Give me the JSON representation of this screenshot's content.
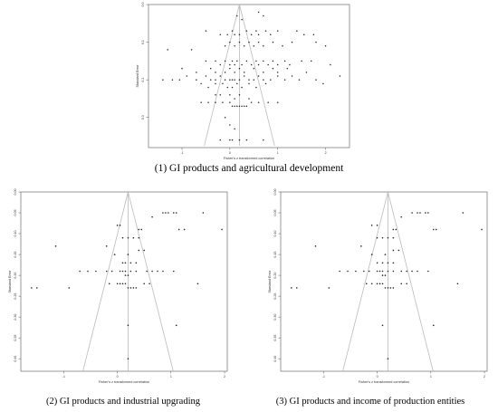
{
  "colors": {
    "frame": "#555555",
    "points": "#222222",
    "funnel": "#bbbbbb"
  },
  "captions": {
    "p1": "(1) GI products and agricultural development",
    "p2": "(2) GI products and industrial upgrading",
    "p3": "(3) GI products and income of production entities"
  },
  "chart_data": [
    {
      "type": "scatter",
      "title": "",
      "xlabel": "Fisher's z transformed correlation",
      "ylabel": "Standard Error",
      "xlim": [
        -1.7,
        2.5
      ],
      "ylim": [
        0.38,
        0.0
      ],
      "x_ticks": [
        -1,
        0,
        1,
        2
      ],
      "y_ticks": [
        0.0,
        0.1,
        0.2,
        0.3
      ],
      "y_tick_labels": [
        "0.0",
        "0.1",
        "0.2",
        "0.3"
      ],
      "funnel": {
        "center": 0.2,
        "apex": 0.0,
        "base_se": 0.375
      },
      "points": [
        [
          0.15,
          0.03
        ],
        [
          0.25,
          0.04
        ],
        [
          0.6,
          0.02
        ],
        [
          0.7,
          0.03
        ],
        [
          -0.2,
          0.08
        ],
        [
          -0.05,
          0.08
        ],
        [
          0.05,
          0.07
        ],
        [
          0.1,
          0.08
        ],
        [
          0.2,
          0.08
        ],
        [
          0.35,
          0.07
        ],
        [
          0.45,
          0.08
        ],
        [
          0.55,
          0.07
        ],
        [
          0.6,
          0.08
        ],
        [
          0.75,
          0.07
        ],
        [
          0.85,
          0.08
        ],
        [
          1.0,
          0.07
        ],
        [
          1.4,
          0.07
        ],
        [
          1.55,
          0.08
        ],
        [
          1.75,
          0.08
        ],
        [
          -0.5,
          0.07
        ],
        [
          -0.1,
          0.11
        ],
        [
          0.0,
          0.1
        ],
        [
          0.1,
          0.11
        ],
        [
          0.2,
          0.1
        ],
        [
          0.3,
          0.11
        ],
        [
          0.4,
          0.1
        ],
        [
          0.5,
          0.11
        ],
        [
          0.6,
          0.1
        ],
        [
          0.7,
          0.11
        ],
        [
          0.9,
          0.1
        ],
        [
          1.1,
          0.11
        ],
        [
          1.3,
          0.1
        ],
        [
          1.8,
          0.1
        ],
        [
          2.0,
          0.11
        ],
        [
          -0.8,
          0.12
        ],
        [
          -1.3,
          0.12
        ],
        [
          -0.5,
          0.15
        ],
        [
          -0.3,
          0.15
        ],
        [
          -0.2,
          0.16
        ],
        [
          -0.1,
          0.15
        ],
        [
          0.0,
          0.16
        ],
        [
          0.05,
          0.15
        ],
        [
          0.1,
          0.16
        ],
        [
          0.15,
          0.15
        ],
        [
          0.25,
          0.16
        ],
        [
          0.35,
          0.15
        ],
        [
          0.45,
          0.16
        ],
        [
          0.55,
          0.15
        ],
        [
          0.6,
          0.16
        ],
        [
          0.7,
          0.15
        ],
        [
          0.8,
          0.16
        ],
        [
          0.9,
          0.15
        ],
        [
          1.0,
          0.16
        ],
        [
          1.15,
          0.15
        ],
        [
          1.25,
          0.16
        ],
        [
          1.5,
          0.15
        ],
        [
          1.7,
          0.15
        ],
        [
          2.1,
          0.16
        ],
        [
          -1.0,
          0.17
        ],
        [
          -0.7,
          0.18
        ],
        [
          -0.4,
          0.17
        ],
        [
          -0.3,
          0.18
        ],
        [
          -0.1,
          0.18
        ],
        [
          0.0,
          0.17
        ],
        [
          0.1,
          0.18
        ],
        [
          0.2,
          0.17
        ],
        [
          0.3,
          0.18
        ],
        [
          0.5,
          0.17
        ],
        [
          0.7,
          0.18
        ],
        [
          0.9,
          0.17
        ],
        [
          1.0,
          0.18
        ],
        [
          1.2,
          0.17
        ],
        [
          1.6,
          0.18
        ],
        [
          -1.4,
          0.2
        ],
        [
          -1.2,
          0.2
        ],
        [
          -1.05,
          0.2
        ],
        [
          -0.9,
          0.19
        ],
        [
          -0.7,
          0.2
        ],
        [
          -0.5,
          0.19
        ],
        [
          -0.4,
          0.2
        ],
        [
          -0.3,
          0.2
        ],
        [
          -0.2,
          0.19
        ],
        [
          -0.1,
          0.2
        ],
        [
          0.0,
          0.2
        ],
        [
          0.05,
          0.2
        ],
        [
          0.1,
          0.2
        ],
        [
          0.2,
          0.2
        ],
        [
          0.3,
          0.19
        ],
        [
          0.4,
          0.2
        ],
        [
          0.5,
          0.2
        ],
        [
          0.6,
          0.19
        ],
        [
          0.7,
          0.2
        ],
        [
          0.85,
          0.2
        ],
        [
          1.0,
          0.19
        ],
        [
          1.15,
          0.2
        ],
        [
          1.3,
          0.19
        ],
        [
          1.45,
          0.2
        ],
        [
          1.8,
          0.2
        ],
        [
          1.95,
          0.21
        ],
        [
          2.3,
          0.19
        ],
        [
          -0.6,
          0.21
        ],
        [
          -0.45,
          0.22
        ],
        [
          -0.3,
          0.21
        ],
        [
          -0.15,
          0.21
        ],
        [
          -0.05,
          0.22
        ],
        [
          0.05,
          0.22
        ],
        [
          0.15,
          0.21
        ],
        [
          0.25,
          0.22
        ],
        [
          0.4,
          0.21
        ],
        [
          0.55,
          0.22
        ],
        [
          0.75,
          0.21
        ],
        [
          -0.3,
          0.24
        ],
        [
          -0.2,
          0.24
        ],
        [
          0.0,
          0.24
        ],
        [
          0.1,
          0.25
        ],
        [
          0.2,
          0.24
        ],
        [
          0.4,
          0.25
        ],
        [
          -0.6,
          0.26
        ],
        [
          -0.45,
          0.26
        ],
        [
          -0.3,
          0.26
        ],
        [
          -0.15,
          0.26
        ],
        [
          0.0,
          0.26
        ],
        [
          0.05,
          0.27
        ],
        [
          0.1,
          0.27
        ],
        [
          0.15,
          0.27
        ],
        [
          0.2,
          0.27
        ],
        [
          0.25,
          0.27
        ],
        [
          0.3,
          0.27
        ],
        [
          0.35,
          0.27
        ],
        [
          0.45,
          0.26
        ],
        [
          0.6,
          0.26
        ],
        [
          0.8,
          0.26
        ],
        [
          1.0,
          0.26
        ],
        [
          -0.1,
          0.3
        ],
        [
          0.0,
          0.32
        ],
        [
          0.1,
          0.33
        ],
        [
          -0.2,
          0.36
        ],
        [
          0.0,
          0.36
        ],
        [
          0.05,
          0.36
        ],
        [
          0.2,
          0.36
        ],
        [
          0.35,
          0.36
        ],
        [
          0.7,
          0.36
        ]
      ]
    },
    {
      "type": "scatter",
      "title": "",
      "xlabel": "Fisher's z transformed correlation",
      "ylabel": "Standard Error",
      "xlim": [
        -1.8,
        2.05
      ],
      "ylim": [
        0.43,
        0.0
      ],
      "x_ticks": [
        -1,
        0,
        1,
        2
      ],
      "y_ticks": [
        0.0,
        0.05,
        0.1,
        0.15,
        0.2,
        0.25,
        0.3,
        0.35,
        0.4
      ],
      "y_tick_labels": [
        "0.00",
        "0.05",
        "0.10",
        "0.15",
        "0.20",
        "0.25",
        "0.30",
        "0.35",
        "0.40"
      ],
      "funnel": {
        "center": 0.2,
        "apex": 0.0,
        "base_se": 0.43
      },
      "points": [
        [
          0.85,
          0.05
        ],
        [
          0.9,
          0.05
        ],
        [
          0.95,
          0.05
        ],
        [
          1.05,
          0.05
        ],
        [
          1.1,
          0.05
        ],
        [
          1.6,
          0.05
        ],
        [
          0.65,
          0.06
        ],
        [
          0.0,
          0.08
        ],
        [
          0.05,
          0.08
        ],
        [
          0.4,
          0.09
        ],
        [
          0.45,
          0.09
        ],
        [
          1.15,
          0.09
        ],
        [
          1.25,
          0.09
        ],
        [
          1.95,
          0.09
        ],
        [
          0.1,
          0.11
        ],
        [
          0.2,
          0.11
        ],
        [
          0.3,
          0.11
        ],
        [
          0.4,
          0.11
        ],
        [
          -1.15,
          0.13
        ],
        [
          -0.2,
          0.13
        ],
        [
          -0.05,
          0.15
        ],
        [
          0.2,
          0.15
        ],
        [
          0.4,
          0.14
        ],
        [
          0.5,
          0.14
        ],
        [
          0.1,
          0.17
        ],
        [
          0.15,
          0.17
        ],
        [
          0.25,
          0.17
        ],
        [
          0.35,
          0.17
        ],
        [
          -0.7,
          0.19
        ],
        [
          -0.55,
          0.19
        ],
        [
          -0.4,
          0.19
        ],
        [
          -0.2,
          0.19
        ],
        [
          -0.1,
          0.19
        ],
        [
          0.05,
          0.19
        ],
        [
          0.1,
          0.19
        ],
        [
          0.15,
          0.19
        ],
        [
          0.25,
          0.19
        ],
        [
          0.35,
          0.19
        ],
        [
          0.55,
          0.19
        ],
        [
          0.65,
          0.19
        ],
        [
          0.75,
          0.19
        ],
        [
          0.85,
          0.19
        ],
        [
          1.05,
          0.19
        ],
        [
          0.15,
          0.2
        ],
        [
          0.2,
          0.2
        ],
        [
          -0.15,
          0.22
        ],
        [
          0.0,
          0.22
        ],
        [
          0.05,
          0.22
        ],
        [
          0.1,
          0.22
        ],
        [
          0.15,
          0.22
        ],
        [
          0.2,
          0.23
        ],
        [
          0.25,
          0.23
        ],
        [
          0.3,
          0.23
        ],
        [
          0.35,
          0.23
        ],
        [
          0.5,
          0.22
        ],
        [
          0.6,
          0.22
        ],
        [
          1.5,
          0.22
        ],
        [
          -1.6,
          0.23
        ],
        [
          -1.5,
          0.23
        ],
        [
          -0.9,
          0.23
        ],
        [
          0.2,
          0.32
        ],
        [
          1.1,
          0.32
        ],
        [
          0.2,
          0.4
        ]
      ]
    },
    {
      "type": "scatter",
      "title": "",
      "xlabel": "Fisher's z transformed correlation",
      "ylabel": "Standard Error",
      "xlim": [
        -1.8,
        2.05
      ],
      "ylim": [
        0.43,
        0.0
      ],
      "x_ticks": [
        -1,
        0,
        1,
        2
      ],
      "y_ticks": [
        0.0,
        0.05,
        0.1,
        0.15,
        0.2,
        0.25,
        0.3,
        0.35,
        0.4
      ],
      "y_tick_labels": [
        "0.00",
        "0.05",
        "0.10",
        "0.15",
        "0.20",
        "0.25",
        "0.30",
        "0.35",
        "0.40"
      ],
      "funnel": {
        "center": 0.2,
        "apex": 0.0,
        "base_se": 0.43
      },
      "points": [
        [
          0.65,
          0.05
        ],
        [
          0.75,
          0.05
        ],
        [
          0.8,
          0.05
        ],
        [
          0.9,
          0.05
        ],
        [
          0.95,
          0.05
        ],
        [
          1.6,
          0.05
        ],
        [
          0.45,
          0.06
        ],
        [
          -0.1,
          0.08
        ],
        [
          0.0,
          0.08
        ],
        [
          0.3,
          0.09
        ],
        [
          0.35,
          0.09
        ],
        [
          1.05,
          0.09
        ],
        [
          1.1,
          0.09
        ],
        [
          1.95,
          0.09
        ],
        [
          0.0,
          0.11
        ],
        [
          0.1,
          0.11
        ],
        [
          0.2,
          0.11
        ],
        [
          0.3,
          0.11
        ],
        [
          -1.15,
          0.13
        ],
        [
          -0.3,
          0.13
        ],
        [
          -0.1,
          0.15
        ],
        [
          0.15,
          0.15
        ],
        [
          0.3,
          0.14
        ],
        [
          0.4,
          0.14
        ],
        [
          0.0,
          0.17
        ],
        [
          0.1,
          0.17
        ],
        [
          0.2,
          0.17
        ],
        [
          0.3,
          0.17
        ],
        [
          -0.7,
          0.19
        ],
        [
          -0.55,
          0.19
        ],
        [
          -0.4,
          0.19
        ],
        [
          -0.25,
          0.19
        ],
        [
          -0.15,
          0.19
        ],
        [
          0.0,
          0.19
        ],
        [
          0.05,
          0.19
        ],
        [
          0.1,
          0.19
        ],
        [
          0.2,
          0.19
        ],
        [
          0.3,
          0.19
        ],
        [
          0.45,
          0.19
        ],
        [
          0.55,
          0.19
        ],
        [
          0.65,
          0.19
        ],
        [
          0.75,
          0.19
        ],
        [
          0.95,
          0.19
        ],
        [
          0.1,
          0.2
        ],
        [
          0.15,
          0.2
        ],
        [
          -0.2,
          0.22
        ],
        [
          -0.1,
          0.22
        ],
        [
          0.0,
          0.22
        ],
        [
          0.05,
          0.22
        ],
        [
          0.1,
          0.22
        ],
        [
          0.15,
          0.23
        ],
        [
          0.2,
          0.23
        ],
        [
          0.25,
          0.23
        ],
        [
          0.3,
          0.23
        ],
        [
          0.45,
          0.22
        ],
        [
          0.55,
          0.22
        ],
        [
          1.5,
          0.22
        ],
        [
          -1.6,
          0.23
        ],
        [
          -1.5,
          0.23
        ],
        [
          -0.9,
          0.23
        ],
        [
          0.1,
          0.32
        ],
        [
          1.05,
          0.32
        ],
        [
          0.2,
          0.4
        ]
      ]
    }
  ]
}
